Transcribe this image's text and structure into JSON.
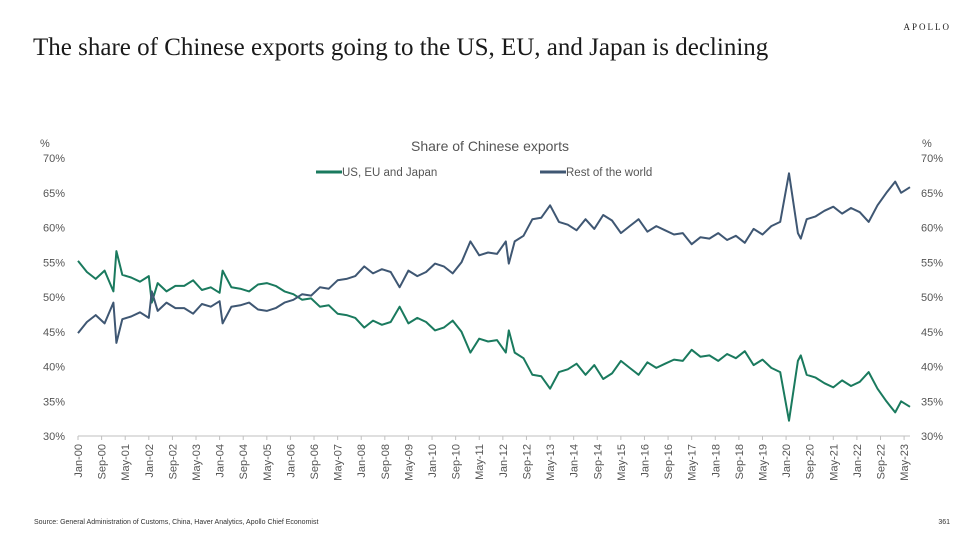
{
  "brand": "APOLLO",
  "headline": "The share of Chinese exports going to the US, EU, and Japan is declining",
  "footer": {
    "source": "Source: General Administration of Customs, China, Haver Analytics, Apollo Chief Economist",
    "page_number": "361"
  },
  "colors": {
    "us_eu_japan": "#1a7a5e",
    "rest_of_world": "#3f5773"
  },
  "chart_data": {
    "type": "line",
    "title": "Share of Chinese exports",
    "ylabel_left": "%",
    "ylabel_right": "%",
    "ylim": [
      30,
      70
    ],
    "yticks": [
      "30%",
      "35%",
      "40%",
      "45%",
      "50%",
      "55%",
      "60%",
      "65%",
      "70%"
    ],
    "xlim": [
      "2000-01",
      "2023-07"
    ],
    "xticks": [
      "Jan-00",
      "Sep-00",
      "May-01",
      "Jan-02",
      "Sep-02",
      "May-03",
      "Jan-04",
      "Sep-04",
      "May-05",
      "Jan-06",
      "Sep-06",
      "May-07",
      "Jan-08",
      "Sep-08",
      "May-09",
      "Jan-10",
      "Sep-10",
      "May-11",
      "Jan-12",
      "Sep-12",
      "May-13",
      "Jan-14",
      "Sep-14",
      "May-15",
      "Jan-16",
      "Sep-16",
      "May-17",
      "Jan-18",
      "Sep-18",
      "May-19",
      "Jan-20",
      "Sep-20",
      "May-21",
      "Jan-22",
      "Sep-22",
      "May-23"
    ],
    "legend_position": "top-center",
    "grid": false,
    "series": [
      {
        "name": "US, EU and Japan",
        "color": "#1a7a5e",
        "points": [
          [
            "2000-01",
            55.2
          ],
          [
            "2000-04",
            53.6
          ],
          [
            "2000-07",
            52.6
          ],
          [
            "2000-10",
            53.8
          ],
          [
            "2001-01",
            50.8
          ],
          [
            "2001-02",
            56.6
          ],
          [
            "2001-04",
            53.2
          ],
          [
            "2001-07",
            52.8
          ],
          [
            "2001-10",
            52.2
          ],
          [
            "2002-01",
            53.0
          ],
          [
            "2002-02",
            49.2
          ],
          [
            "2002-04",
            52.0
          ],
          [
            "2002-07",
            50.8
          ],
          [
            "2002-10",
            51.6
          ],
          [
            "2003-01",
            51.6
          ],
          [
            "2003-04",
            52.4
          ],
          [
            "2003-07",
            51.0
          ],
          [
            "2003-10",
            51.4
          ],
          [
            "2004-01",
            50.6
          ],
          [
            "2004-02",
            53.8
          ],
          [
            "2004-05",
            51.4
          ],
          [
            "2004-08",
            51.2
          ],
          [
            "2004-11",
            50.8
          ],
          [
            "2005-02",
            51.8
          ],
          [
            "2005-05",
            52.0
          ],
          [
            "2005-08",
            51.6
          ],
          [
            "2005-11",
            50.8
          ],
          [
            "2006-02",
            50.4
          ],
          [
            "2006-05",
            49.6
          ],
          [
            "2006-08",
            49.8
          ],
          [
            "2006-11",
            48.6
          ],
          [
            "2007-02",
            48.8
          ],
          [
            "2007-05",
            47.6
          ],
          [
            "2007-08",
            47.4
          ],
          [
            "2007-11",
            47.0
          ],
          [
            "2008-02",
            45.6
          ],
          [
            "2008-05",
            46.6
          ],
          [
            "2008-08",
            46.0
          ],
          [
            "2008-11",
            46.4
          ],
          [
            "2009-02",
            48.6
          ],
          [
            "2009-05",
            46.2
          ],
          [
            "2009-08",
            47.0
          ],
          [
            "2009-11",
            46.4
          ],
          [
            "2010-02",
            45.2
          ],
          [
            "2010-05",
            45.6
          ],
          [
            "2010-08",
            46.6
          ],
          [
            "2010-11",
            45.0
          ],
          [
            "2011-02",
            42.0
          ],
          [
            "2011-05",
            44.0
          ],
          [
            "2011-08",
            43.6
          ],
          [
            "2011-11",
            43.8
          ],
          [
            "2012-02",
            42.0
          ],
          [
            "2012-03",
            45.2
          ],
          [
            "2012-05",
            42.0
          ],
          [
            "2012-08",
            41.2
          ],
          [
            "2012-11",
            38.8
          ],
          [
            "2013-02",
            38.6
          ],
          [
            "2013-05",
            36.8
          ],
          [
            "2013-08",
            39.2
          ],
          [
            "2013-11",
            39.6
          ],
          [
            "2014-02",
            40.4
          ],
          [
            "2014-05",
            38.8
          ],
          [
            "2014-08",
            40.2
          ],
          [
            "2014-11",
            38.2
          ],
          [
            "2015-02",
            39.0
          ],
          [
            "2015-05",
            40.8
          ],
          [
            "2015-08",
            39.8
          ],
          [
            "2015-11",
            38.8
          ],
          [
            "2016-02",
            40.6
          ],
          [
            "2016-05",
            39.8
          ],
          [
            "2016-08",
            40.4
          ],
          [
            "2016-11",
            41.0
          ],
          [
            "2017-02",
            40.8
          ],
          [
            "2017-05",
            42.4
          ],
          [
            "2017-08",
            41.4
          ],
          [
            "2017-11",
            41.6
          ],
          [
            "2018-02",
            40.8
          ],
          [
            "2018-05",
            41.8
          ],
          [
            "2018-08",
            41.2
          ],
          [
            "2018-11",
            42.2
          ],
          [
            "2019-02",
            40.2
          ],
          [
            "2019-05",
            41.0
          ],
          [
            "2019-08",
            39.8
          ],
          [
            "2019-11",
            39.2
          ],
          [
            "2020-02",
            32.2
          ],
          [
            "2020-05",
            40.8
          ],
          [
            "2020-06",
            41.6
          ],
          [
            "2020-08",
            38.8
          ],
          [
            "2020-11",
            38.4
          ],
          [
            "2021-02",
            37.6
          ],
          [
            "2021-05",
            37.0
          ],
          [
            "2021-08",
            38.0
          ],
          [
            "2021-11",
            37.2
          ],
          [
            "2022-02",
            37.8
          ],
          [
            "2022-05",
            39.2
          ],
          [
            "2022-08",
            36.8
          ],
          [
            "2022-11",
            35.0
          ],
          [
            "2023-02",
            33.4
          ],
          [
            "2023-04",
            35.0
          ],
          [
            "2023-07",
            34.2
          ]
        ]
      },
      {
        "name": "Rest of the world",
        "color": "#3f5773",
        "points": [
          [
            "2000-01",
            44.8
          ],
          [
            "2000-04",
            46.4
          ],
          [
            "2000-07",
            47.4
          ],
          [
            "2000-10",
            46.2
          ],
          [
            "2001-01",
            49.2
          ],
          [
            "2001-02",
            43.4
          ],
          [
            "2001-04",
            46.8
          ],
          [
            "2001-07",
            47.2
          ],
          [
            "2001-10",
            47.8
          ],
          [
            "2002-01",
            47.0
          ],
          [
            "2002-02",
            50.8
          ],
          [
            "2002-04",
            48.0
          ],
          [
            "2002-07",
            49.2
          ],
          [
            "2002-10",
            48.4
          ],
          [
            "2003-01",
            48.4
          ],
          [
            "2003-04",
            47.6
          ],
          [
            "2003-07",
            49.0
          ],
          [
            "2003-10",
            48.6
          ],
          [
            "2004-01",
            49.4
          ],
          [
            "2004-02",
            46.2
          ],
          [
            "2004-05",
            48.6
          ],
          [
            "2004-08",
            48.8
          ],
          [
            "2004-11",
            49.2
          ],
          [
            "2005-02",
            48.2
          ],
          [
            "2005-05",
            48.0
          ],
          [
            "2005-08",
            48.4
          ],
          [
            "2005-11",
            49.2
          ],
          [
            "2006-02",
            49.6
          ],
          [
            "2006-05",
            50.4
          ],
          [
            "2006-08",
            50.2
          ],
          [
            "2006-11",
            51.4
          ],
          [
            "2007-02",
            51.2
          ],
          [
            "2007-05",
            52.4
          ],
          [
            "2007-08",
            52.6
          ],
          [
            "2007-11",
            53.0
          ],
          [
            "2008-02",
            54.4
          ],
          [
            "2008-05",
            53.4
          ],
          [
            "2008-08",
            54.0
          ],
          [
            "2008-11",
            53.6
          ],
          [
            "2009-02",
            51.4
          ],
          [
            "2009-05",
            53.8
          ],
          [
            "2009-08",
            53.0
          ],
          [
            "2009-11",
            53.6
          ],
          [
            "2010-02",
            54.8
          ],
          [
            "2010-05",
            54.4
          ],
          [
            "2010-08",
            53.4
          ],
          [
            "2010-11",
            55.0
          ],
          [
            "2011-02",
            58.0
          ],
          [
            "2011-05",
            56.0
          ],
          [
            "2011-08",
            56.4
          ],
          [
            "2011-11",
            56.2
          ],
          [
            "2012-02",
            58.0
          ],
          [
            "2012-03",
            54.8
          ],
          [
            "2012-05",
            58.0
          ],
          [
            "2012-08",
            58.8
          ],
          [
            "2012-11",
            61.2
          ],
          [
            "2013-02",
            61.4
          ],
          [
            "2013-05",
            63.2
          ],
          [
            "2013-08",
            60.8
          ],
          [
            "2013-11",
            60.4
          ],
          [
            "2014-02",
            59.6
          ],
          [
            "2014-05",
            61.2
          ],
          [
            "2014-08",
            59.8
          ],
          [
            "2014-11",
            61.8
          ],
          [
            "2015-02",
            61.0
          ],
          [
            "2015-05",
            59.2
          ],
          [
            "2015-08",
            60.2
          ],
          [
            "2015-11",
            61.2
          ],
          [
            "2016-02",
            59.4
          ],
          [
            "2016-05",
            60.2
          ],
          [
            "2016-08",
            59.6
          ],
          [
            "2016-11",
            59.0
          ],
          [
            "2017-02",
            59.2
          ],
          [
            "2017-05",
            57.6
          ],
          [
            "2017-08",
            58.6
          ],
          [
            "2017-11",
            58.4
          ],
          [
            "2018-02",
            59.2
          ],
          [
            "2018-05",
            58.2
          ],
          [
            "2018-08",
            58.8
          ],
          [
            "2018-11",
            57.8
          ],
          [
            "2019-02",
            59.8
          ],
          [
            "2019-05",
            59.0
          ],
          [
            "2019-08",
            60.2
          ],
          [
            "2019-11",
            60.8
          ],
          [
            "2020-02",
            67.8
          ],
          [
            "2020-05",
            59.2
          ],
          [
            "2020-06",
            58.4
          ],
          [
            "2020-08",
            61.2
          ],
          [
            "2020-11",
            61.6
          ],
          [
            "2021-02",
            62.4
          ],
          [
            "2021-05",
            63.0
          ],
          [
            "2021-08",
            62.0
          ],
          [
            "2021-11",
            62.8
          ],
          [
            "2022-02",
            62.2
          ],
          [
            "2022-05",
            60.8
          ],
          [
            "2022-08",
            63.2
          ],
          [
            "2022-11",
            65.0
          ],
          [
            "2023-02",
            66.6
          ],
          [
            "2023-04",
            65.0
          ],
          [
            "2023-07",
            65.8
          ]
        ]
      }
    ]
  }
}
